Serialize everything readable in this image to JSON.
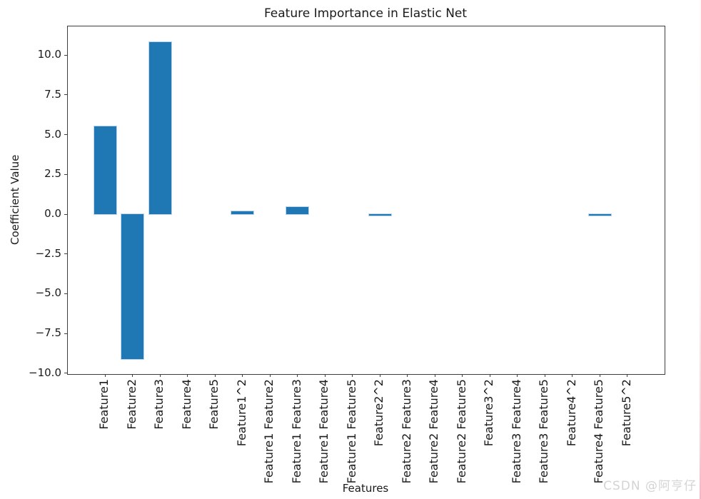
{
  "figure": {
    "watermark": "CSDN @阿亨仔"
  },
  "chart_data": {
    "type": "bar",
    "title": "Feature Importance in Elastic Net",
    "xlabel": "Features",
    "ylabel": "Coefficient Value",
    "categories": [
      "Feature1",
      "Feature2",
      "Feature3",
      "Feature4",
      "Feature5",
      "Feature1^2",
      "Feature1 Feature2",
      "Feature1 Feature3",
      "Feature1 Feature4",
      "Feature1 Feature5",
      "Feature2^2",
      "Feature2 Feature3",
      "Feature2 Feature4",
      "Feature2 Feature5",
      "Feature3^2",
      "Feature3 Feature4",
      "Feature3 Feature5",
      "Feature4^2",
      "Feature4 Feature5",
      "Feature5^2"
    ],
    "values": [
      5.5,
      -9.1,
      10.8,
      0,
      0,
      0.2,
      0,
      0.45,
      0,
      0,
      -0.1,
      0,
      0,
      0,
      0,
      0,
      0,
      0,
      -0.1,
      0
    ],
    "bar_color": "#1f77b4",
    "ylim": [
      -10.05,
      11.8
    ],
    "ytick_values": [
      10,
      7.5,
      5,
      2.5,
      0,
      -2.5,
      -5,
      -7.5,
      -10
    ],
    "ytick_labels": [
      "10.0",
      "7.5",
      "5.0",
      "2.5",
      "0.0",
      "−2.5",
      "−5.0",
      "−7.5",
      "−10.0"
    ],
    "grid": false,
    "legend": null
  }
}
